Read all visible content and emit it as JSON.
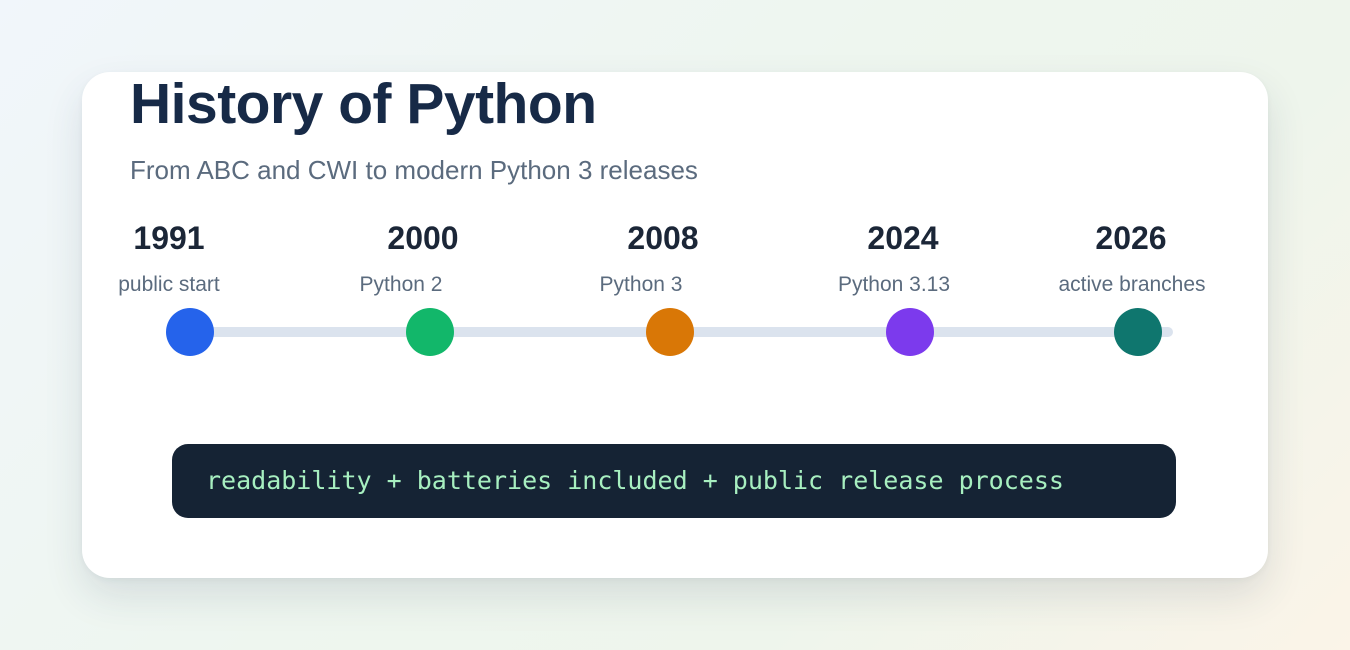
{
  "title": "History of Python",
  "subtitle": "From ABC and CWI to modern Python 3 releases",
  "events": [
    {
      "year": "1991",
      "label": "public start",
      "color": "#2563eb"
    },
    {
      "year": "2000",
      "label": "Python 2",
      "color": "#12b76a"
    },
    {
      "year": "2008",
      "label": "Python 3",
      "color": "#d97706"
    },
    {
      "year": "2024",
      "label": "Python 3.13",
      "color": "#7c3aed"
    },
    {
      "year": "2026",
      "label": "active branches",
      "color": "#0f766e"
    }
  ],
  "motto": "readability + batteries included + public release process"
}
